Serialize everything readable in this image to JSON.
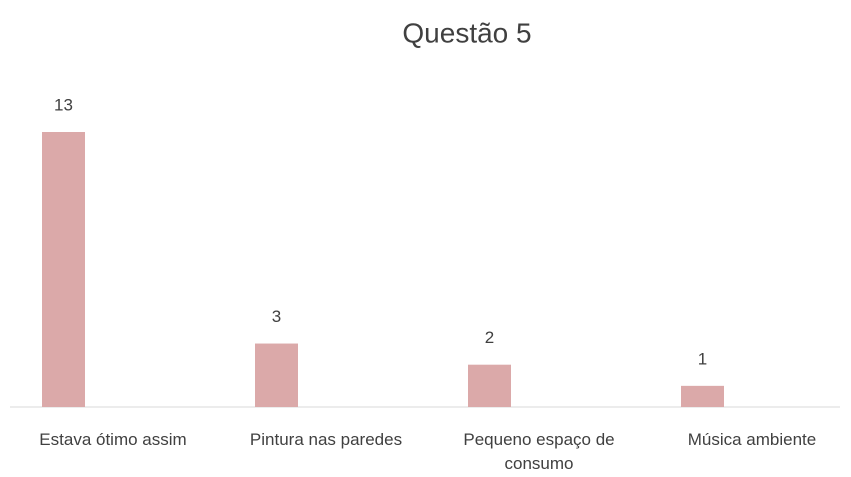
{
  "chart_data": {
    "type": "bar",
    "title": "Questão 5",
    "categories": [
      "Estava ótimo assim",
      "Pintura nas paredes",
      "Pequeno espaço de consumo",
      "Música ambiente"
    ],
    "values": [
      13,
      3,
      2,
      1
    ],
    "color": "#dba9a9"
  }
}
